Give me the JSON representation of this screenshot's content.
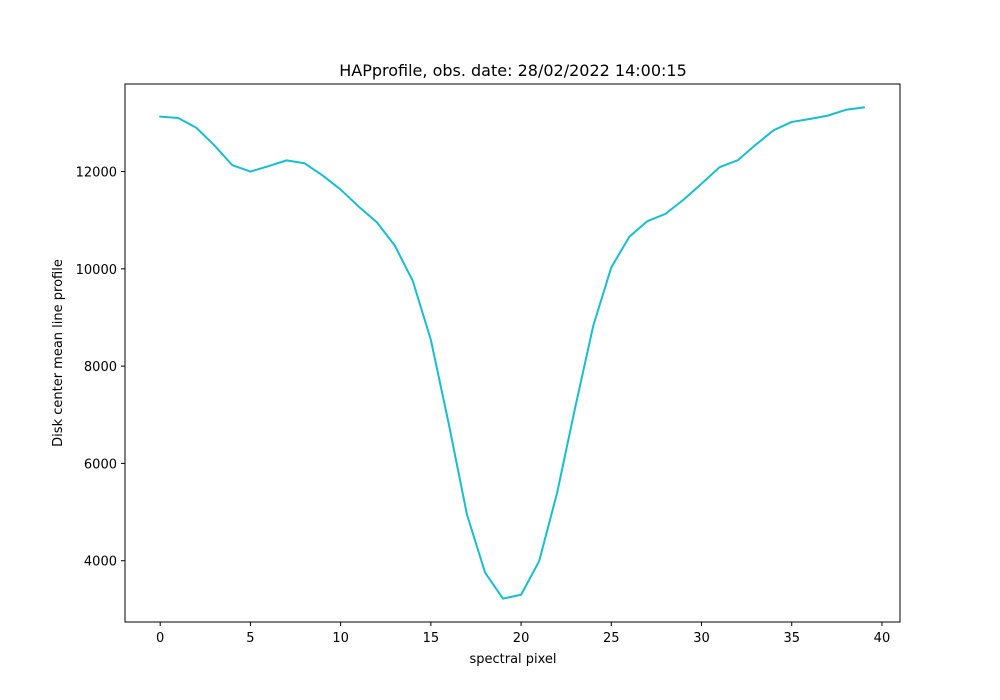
{
  "chart_data": {
    "type": "line",
    "title": "HAPprofile, obs. date: 28/02/2022 14:00:15",
    "xlabel": "spectral pixel",
    "ylabel": "Disk center mean line profile",
    "xlim": [
      -1.95,
      41.0
    ],
    "ylim": [
      2740,
      13800
    ],
    "xticks": [
      0,
      5,
      10,
      15,
      20,
      25,
      30,
      35,
      40
    ],
    "xtick_labels": [
      "0",
      "5",
      "10",
      "15",
      "20",
      "25",
      "30",
      "35",
      "40"
    ],
    "yticks": [
      4000,
      6000,
      8000,
      10000,
      12000
    ],
    "ytick_labels": [
      "4000",
      "6000",
      "8000",
      "10000",
      "12000"
    ],
    "grid": false,
    "series": [
      {
        "color": "#17becf",
        "x": [
          0,
          1,
          2,
          3,
          4,
          5,
          6,
          7,
          8,
          9,
          10,
          11,
          12,
          13,
          14,
          15,
          16,
          17,
          18,
          19,
          20,
          21,
          22,
          23,
          24,
          25,
          26,
          27,
          28,
          29,
          30,
          31,
          32,
          33,
          34,
          35,
          36,
          37,
          38,
          39
        ],
        "y": [
          13130,
          13100,
          12900,
          12540,
          12130,
          12000,
          12110,
          12230,
          12170,
          11920,
          11630,
          11280,
          10960,
          10480,
          9750,
          8540,
          6800,
          4950,
          3760,
          3220,
          3300,
          3990,
          5400,
          7150,
          8830,
          10030,
          10660,
          10980,
          11130,
          11420,
          11750,
          12090,
          12230,
          12550,
          12850,
          13020,
          13080,
          13150,
          13270,
          13320
        ]
      }
    ]
  }
}
